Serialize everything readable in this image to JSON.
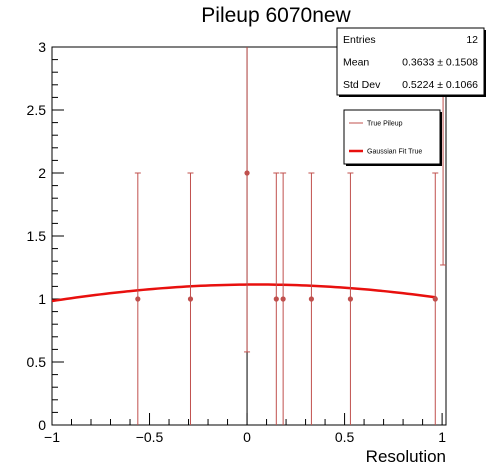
{
  "chart_data": {
    "type": "scatter",
    "title": "Pileup 6070new",
    "xlabel": "Resolution",
    "ylabel": "",
    "xlim": [
      -1,
      1.02
    ],
    "ylim": [
      0,
      3
    ],
    "xticks": [
      -1,
      -0.5,
      0,
      0.5,
      1
    ],
    "xtick_labels": [
      "−1",
      "−0.5",
      "0",
      "0.5",
      "1"
    ],
    "yticks": [
      0,
      0.5,
      1,
      1.5,
      2,
      2.5,
      3
    ],
    "ytick_labels": [
      "0",
      "0.5",
      "1",
      "1.5",
      "2",
      "2.5",
      "3"
    ],
    "grid": false,
    "series": [
      {
        "name": "True Pileup",
        "color": "#c0504d",
        "points": [
          {
            "x": -0.56,
            "y": 1,
            "err_low": 1,
            "err_high": 1
          },
          {
            "x": -0.29,
            "y": 1,
            "err_low": 1,
            "err_high": 1
          },
          {
            "x": 0.0,
            "y": 2,
            "err_low": 1.42,
            "err_high": 1.42
          },
          {
            "x": 0.15,
            "y": 1,
            "err_low": 1,
            "err_high": 1
          },
          {
            "x": 0.185,
            "y": 1,
            "err_low": 1,
            "err_high": 1
          },
          {
            "x": 0.33,
            "y": 1,
            "err_low": 1,
            "err_high": 1
          },
          {
            "x": 0.53,
            "y": 1,
            "err_low": 1,
            "err_high": 1
          },
          {
            "x": 0.965,
            "y": 1,
            "err_low": 1,
            "err_high": 1
          },
          {
            "x": 1.005,
            "y": 3,
            "err_low": 1.73,
            "err_high": 1.73
          }
        ]
      },
      {
        "name": "Gaussian Fit True",
        "color": "#e8100e",
        "kind": "gaussian",
        "amplitude": 1.115,
        "mean": 0.05,
        "sigma": 2.1,
        "x_range": [
          -1,
          0.97
        ]
      }
    ],
    "legend": {
      "placement": "top-right",
      "entries": [
        "True Pileup",
        "Gaussian Fit True"
      ]
    },
    "stats_box": {
      "rows": [
        {
          "label": "Entries",
          "value": "12"
        },
        {
          "label": "Mean",
          "value": "0.3633 ± 0.1508"
        },
        {
          "label": "Std Dev",
          "value": "0.5224 ± 0.1066"
        }
      ]
    }
  }
}
